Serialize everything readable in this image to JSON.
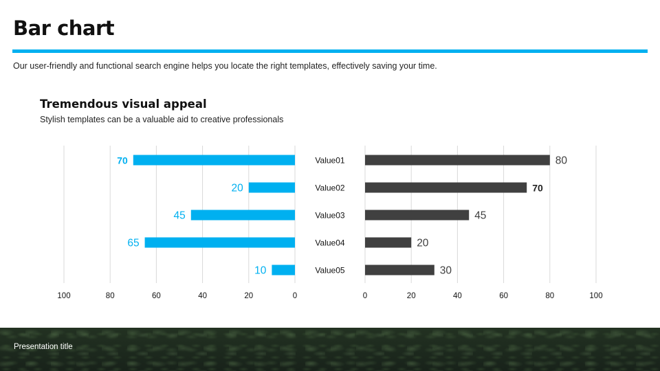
{
  "slide": {
    "title": "Bar chart",
    "description": "Our user-friendly and functional search engine helps you locate the right templates, effectively saving your time.",
    "accent_color": "#00B0F0",
    "footer_text": "Presentation title"
  },
  "chart_data": {
    "type": "bar",
    "orientation": "horizontal-butterfly",
    "title": "Tremendous visual appeal",
    "subtitle": "Stylish templates can be a valuable aid to creative professionals",
    "categories": [
      "Value01",
      "Value02",
      "Value03",
      "Value04",
      "Value05"
    ],
    "grid": true,
    "left": {
      "color": "#00B0F0",
      "values": [
        70,
        20,
        45,
        65,
        10
      ],
      "xlim": [
        100,
        0
      ],
      "ticks": [
        "100",
        "80",
        "60",
        "40",
        "20",
        "0"
      ],
      "bold_index": 0
    },
    "right": {
      "color": "#404040",
      "values": [
        80,
        70,
        45,
        20,
        30
      ],
      "xlim": [
        0,
        100
      ],
      "ticks": [
        "0",
        "20",
        "40",
        "60",
        "80",
        "100"
      ],
      "bold_index": 1
    }
  }
}
